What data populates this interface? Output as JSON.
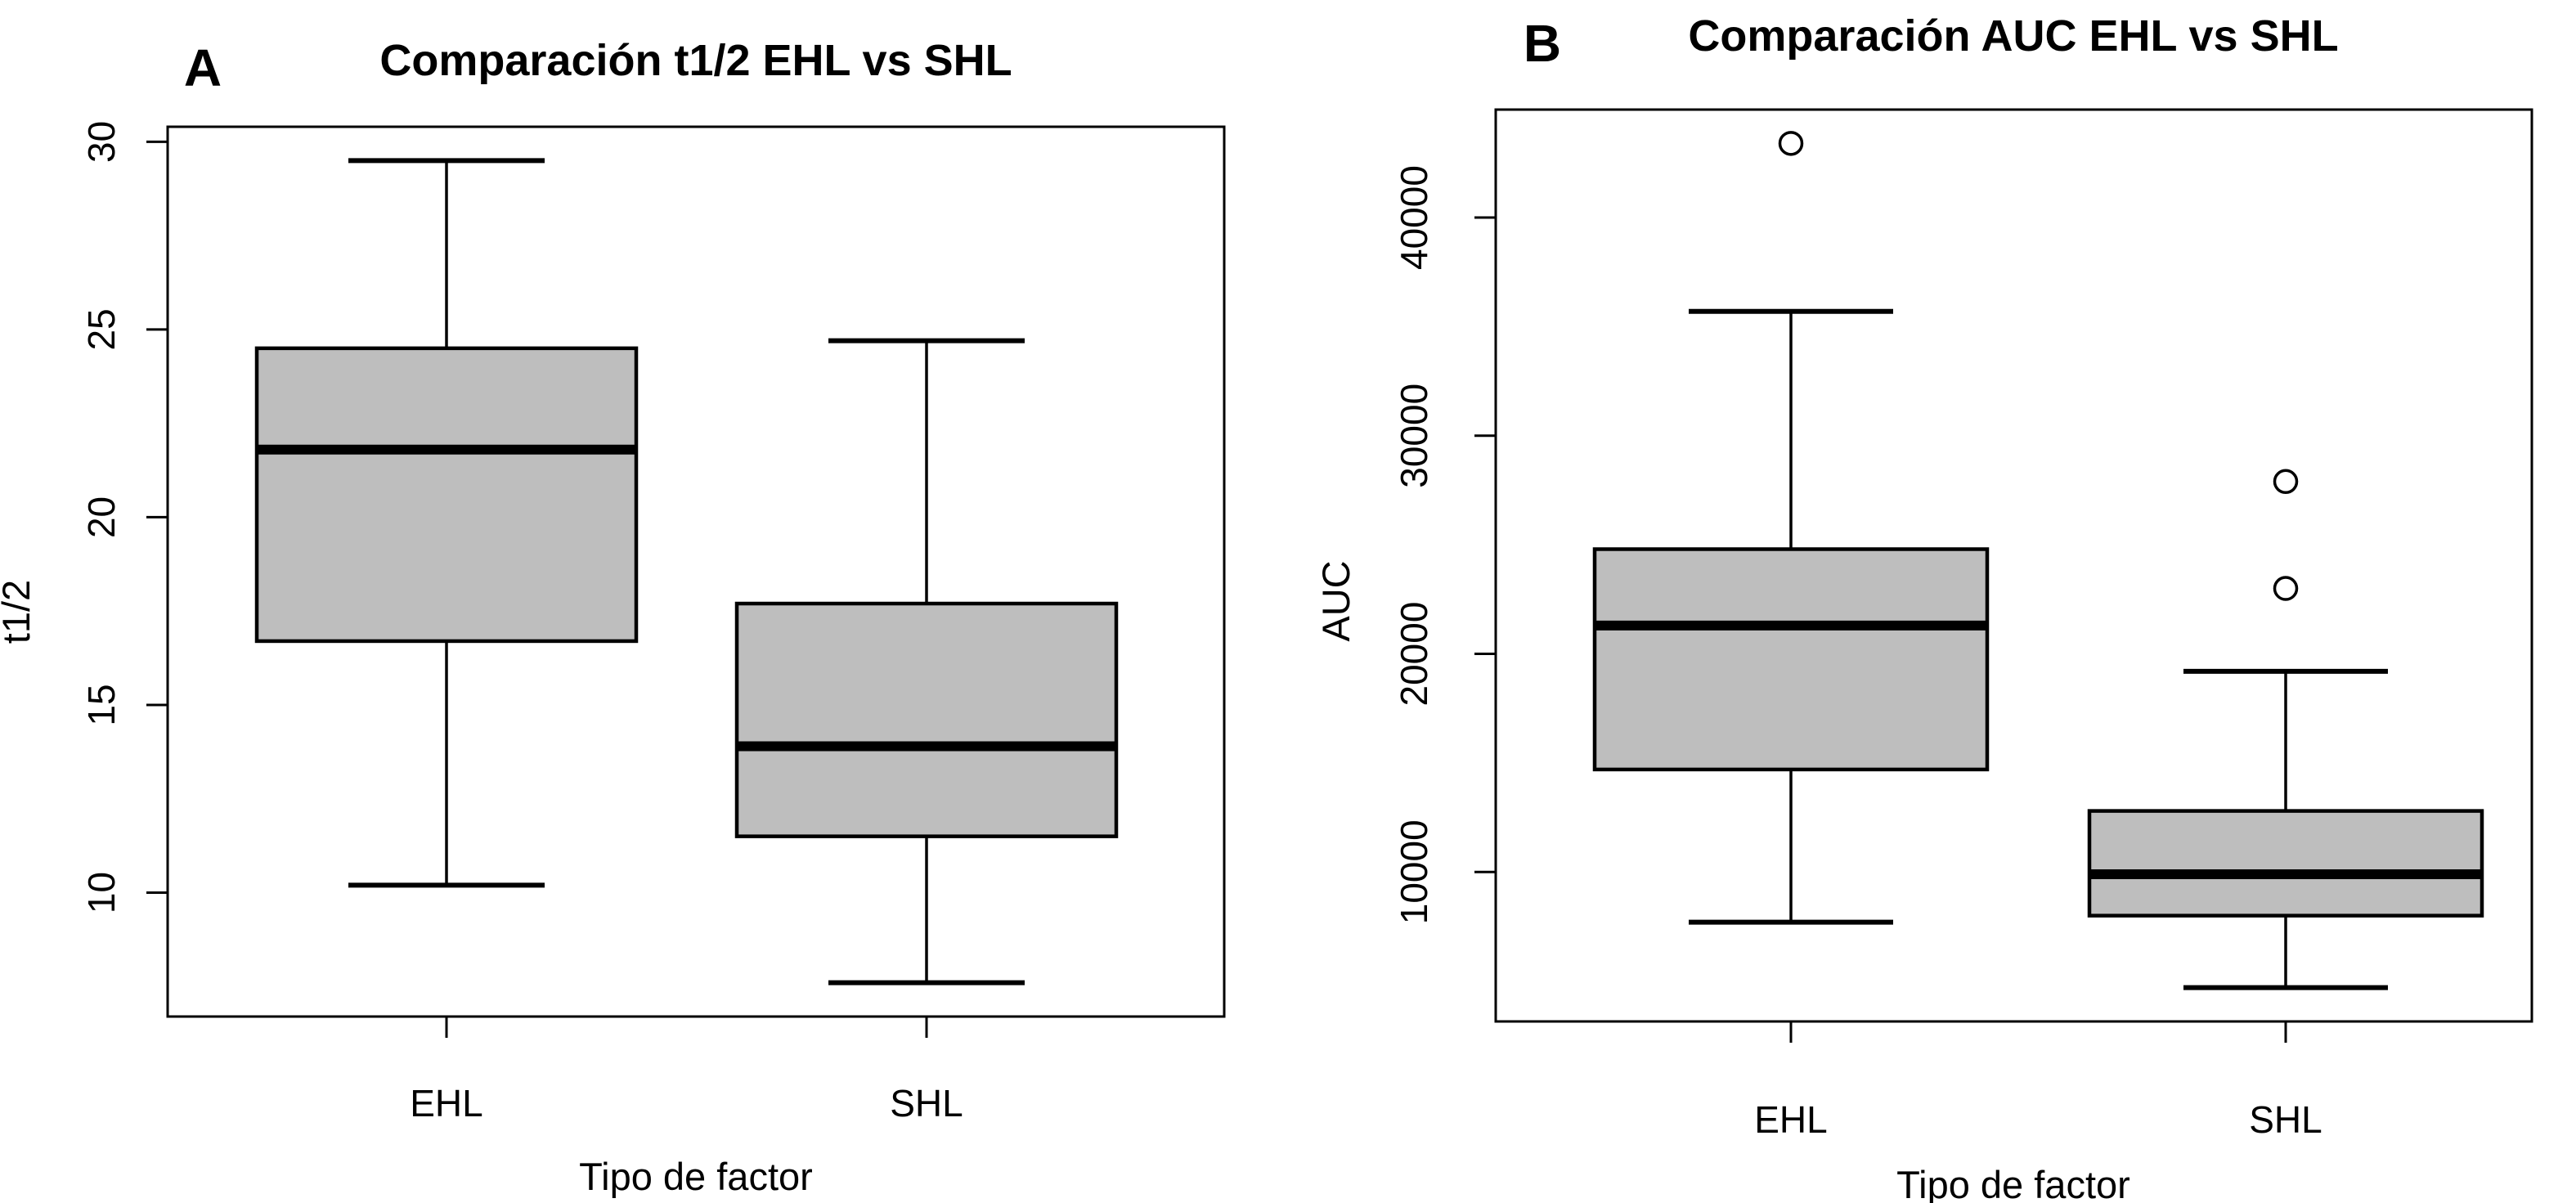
{
  "figure": {
    "background": "#ffffff",
    "panels": [
      {
        "letter": "A"
      },
      {
        "letter": "B"
      }
    ]
  },
  "chart_data": [
    {
      "type": "boxplot",
      "panel": "A",
      "title": "Comparación t1/2 EHL vs SHL",
      "xlabel": "Tipo de factor",
      "ylabel": "t1/2",
      "categories": [
        "EHL",
        "SHL"
      ],
      "yticks": [
        10,
        15,
        20,
        25,
        30
      ],
      "ylim": [
        6.7,
        30.4
      ],
      "grid": false,
      "box_fill": "#bebebe",
      "line_color": "#000000",
      "series": [
        {
          "name": "EHL",
          "whisker_low": 10.2,
          "q1": 16.7,
          "median": 21.8,
          "q3": 24.5,
          "whisker_high": 29.5,
          "outliers": []
        },
        {
          "name": "SHL",
          "whisker_low": 7.6,
          "q1": 11.5,
          "median": 13.9,
          "q3": 17.7,
          "whisker_high": 24.7,
          "outliers": []
        }
      ]
    },
    {
      "type": "boxplot",
      "panel": "B",
      "title": "Comparación AUC EHL vs SHL",
      "xlabel": "Tipo de factor",
      "ylabel": "AUC",
      "categories": [
        "EHL",
        "SHL"
      ],
      "yticks": [
        10000,
        20000,
        30000,
        40000
      ],
      "ylim": [
        3150,
        44950
      ],
      "grid": false,
      "box_fill": "#bebebe",
      "line_color": "#000000",
      "series": [
        {
          "name": "EHL",
          "whisker_low": 7700,
          "q1": 14700,
          "median": 21300,
          "q3": 24800,
          "whisker_high": 35700,
          "outliers": [
            43400
          ]
        },
        {
          "name": "SHL",
          "whisker_low": 4700,
          "q1": 8000,
          "median": 9900,
          "q3": 12800,
          "whisker_high": 19200,
          "outliers": [
            23000,
            27900
          ]
        }
      ]
    }
  ]
}
